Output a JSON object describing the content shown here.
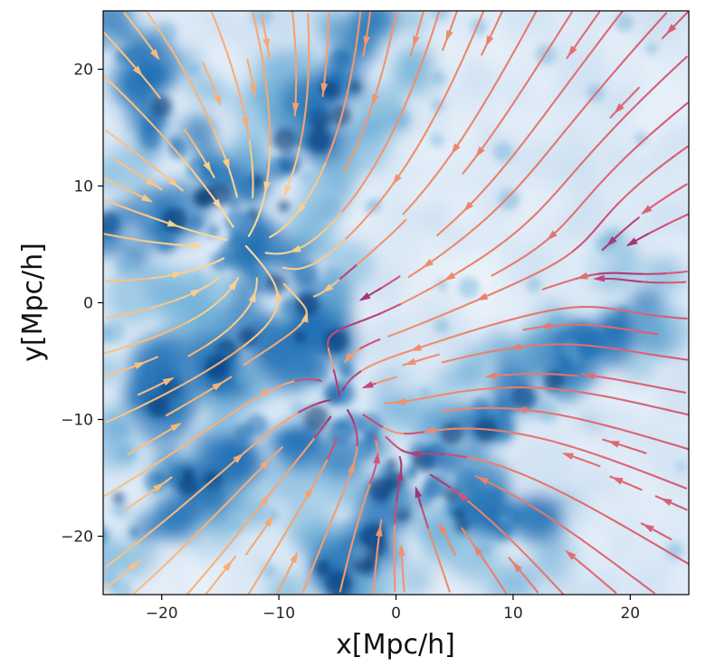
{
  "chart_data": {
    "type": "streamplot",
    "title": "",
    "xlabel": "x[Mpc/h]",
    "ylabel": "y[Mpc/h]",
    "xlim": [
      -25,
      25
    ],
    "ylim": [
      -25,
      25
    ],
    "xticks": [
      -20,
      -10,
      0,
      10,
      20
    ],
    "yticks": [
      -20,
      -10,
      0,
      10,
      20
    ],
    "xtick_labels": [
      "−20",
      "−10",
      "0",
      "10",
      "20"
    ],
    "ytick_labels": [
      "−20",
      "−10",
      "0",
      "10",
      "20"
    ],
    "grid": false,
    "legend": "none",
    "background": "density field (blue colormap)",
    "density_colormap": [
      "#eef4fb",
      "#c6dbef",
      "#6baed6",
      "#2171b5",
      "#08306b"
    ],
    "stream_colormap": [
      "#fce9a8",
      "#f8b77a",
      "#ee8a6a",
      "#d45478",
      "#7a1a72"
    ],
    "attractors": [
      {
        "x": -13.5,
        "y": 5.5
      },
      {
        "x": -5,
        "y": -9
      },
      {
        "x": 2,
        "y": -15
      },
      {
        "x": 19.5,
        "y": 4
      },
      {
        "x": -4,
        "y": 0
      }
    ]
  }
}
